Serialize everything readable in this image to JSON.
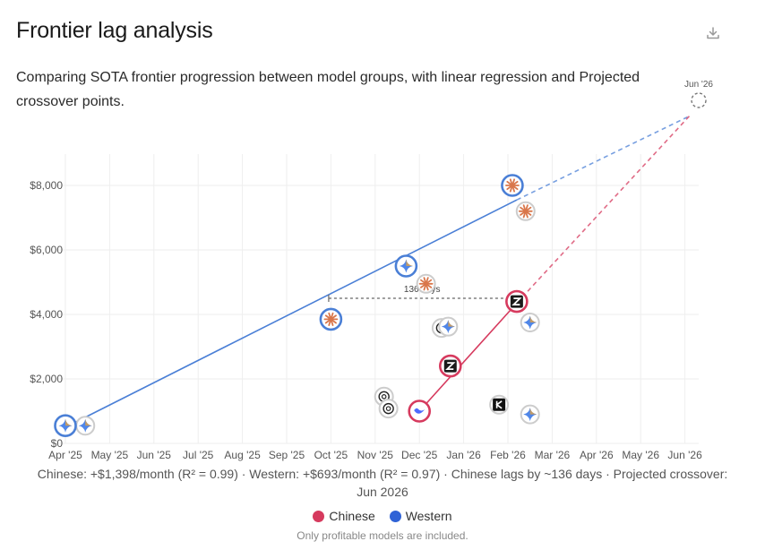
{
  "header": {
    "title": "Frontier lag analysis",
    "subtitle": "Comparing SOTA frontier progression between model groups, with linear regression and Projected crossover points."
  },
  "chart_data": {
    "type": "scatter",
    "title": "Frontier lag analysis",
    "xlabel": "",
    "ylabel": "",
    "x_ticks": [
      "Apr '25",
      "May '25",
      "Jun '25",
      "Jul '25",
      "Aug '25",
      "Sep '25",
      "Oct '25",
      "Nov '25",
      "Dec '25",
      "Jan '26",
      "Feb '26",
      "Mar '26",
      "Apr '26",
      "May '26",
      "Jun '26"
    ],
    "y_ticks": [
      "$0",
      "$2,000",
      "$4,000",
      "$6,000",
      "$8,000"
    ],
    "xlim": [
      0,
      14.5
    ],
    "ylim": [
      0,
      8000
    ],
    "grid": true,
    "colors": {
      "chinese": "#d63a5e",
      "western": "#4a7fd6"
    },
    "series": [
      {
        "name": "Western",
        "frontier": [
          {
            "x": 0.0,
            "y": 550,
            "icon": "gemini"
          },
          {
            "x": 6.0,
            "y": 3850,
            "icon": "claude"
          },
          {
            "x": 7.7,
            "y": 5500,
            "icon": "gemini"
          },
          {
            "x": 10.1,
            "y": 8000,
            "icon": "claude"
          }
        ],
        "others": [
          {
            "x": 0.45,
            "y": 550,
            "icon": "gemini"
          },
          {
            "x": 7.2,
            "y": 1450,
            "icon": "openai"
          },
          {
            "x": 7.3,
            "y": 1080,
            "icon": "openai"
          },
          {
            "x": 8.15,
            "y": 4950,
            "icon": "claude"
          },
          {
            "x": 8.5,
            "y": 3580,
            "icon": "openai"
          },
          {
            "x": 8.65,
            "y": 3620,
            "icon": "gemini"
          },
          {
            "x": 10.4,
            "y": 7200,
            "icon": "claude"
          },
          {
            "x": 10.5,
            "y": 3750,
            "icon": "gemini"
          },
          {
            "x": 10.5,
            "y": 900,
            "icon": "gemini"
          }
        ],
        "regression": {
          "from": [
            0.0,
            500
          ],
          "to": [
            10.2,
            7550
          ]
        },
        "projection": {
          "from": [
            10.2,
            7550
          ],
          "to": [
            14.1,
            10150
          ]
        }
      },
      {
        "name": "Chinese",
        "frontier": [
          {
            "x": 8.0,
            "y": 1000,
            "icon": "deepseek"
          },
          {
            "x": 8.7,
            "y": 2400,
            "icon": "zhipu"
          },
          {
            "x": 10.2,
            "y": 4400,
            "icon": "zhipu"
          }
        ],
        "others": [
          {
            "x": 9.8,
            "y": 1200,
            "icon": "kimi"
          }
        ],
        "regression": {
          "from": [
            8.0,
            1000
          ],
          "to": [
            10.2,
            4350
          ]
        },
        "projection": {
          "from": [
            10.2,
            4350
          ],
          "to": [
            14.1,
            10150
          ]
        }
      }
    ],
    "annotations": {
      "lag_label": "136 days",
      "lag_line": {
        "from": [
          5.95,
          4500
        ],
        "to": [
          10.1,
          4500
        ]
      },
      "crossover": {
        "label": "Jun '26",
        "x": 14.1,
        "y": 10150
      }
    }
  },
  "summary": "Chinese: +$1,398/month (R² = 0.99) · Western: +$693/month (R² = 0.97) · Chinese lags by ~136 days · Projected crossover: Jun 2026",
  "legend": {
    "chinese_label": "Chinese",
    "western_label": "Western"
  },
  "footnote": "Only profitable models are included.",
  "icons": {
    "download": "download-icon"
  }
}
